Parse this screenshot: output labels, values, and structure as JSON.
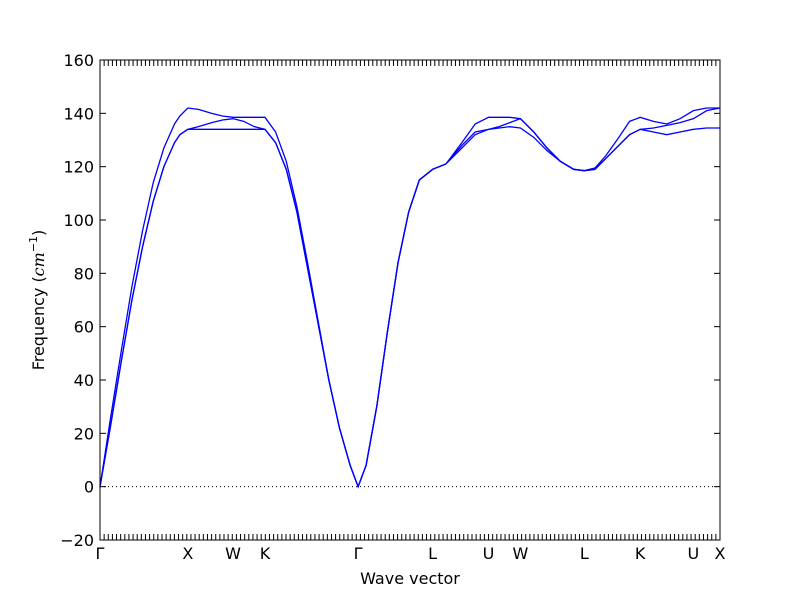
{
  "chart_data": {
    "type": "line",
    "title": "",
    "xlabel": "Wave vector",
    "ylabel_prefix": "Frequency (",
    "ylabel_unit_base": "cm",
    "ylabel_unit_exp": "−1",
    "ylabel_suffix": ")",
    "ylim": [
      -20,
      160
    ],
    "yticks": [
      -20,
      0,
      20,
      40,
      60,
      80,
      100,
      120,
      140,
      160
    ],
    "ytick_labels": [
      "−20",
      "0",
      "20",
      "40",
      "60",
      "80",
      "100",
      "120",
      "140",
      "160"
    ],
    "xlim": [
      0,
      23.3
    ],
    "high_symmetry_points": [
      {
        "label": "Γ",
        "x": 0
      },
      {
        "label": "X",
        "x": 3.3
      },
      {
        "label": "W",
        "x": 5.0
      },
      {
        "label": "K",
        "x": 6.2
      },
      {
        "label": "Γ",
        "x": 9.7
      },
      {
        "label": "L",
        "x": 12.5
      },
      {
        "label": "U",
        "x": 14.6
      },
      {
        "label": "W",
        "x": 15.8
      },
      {
        "label": "L",
        "x": 18.2
      },
      {
        "label": "K",
        "x": 20.3
      },
      {
        "label": "U",
        "x": 22.3
      },
      {
        "label": "X",
        "x": 23.3
      }
    ],
    "zero_line": true,
    "grid": false,
    "series_color": "#0000ff",
    "series": [
      {
        "x": [
          0,
          0.4,
          0.8,
          1.2,
          1.6,
          2.0,
          2.4,
          2.8,
          3.0,
          3.3,
          3.7,
          4.2,
          4.6,
          5.0,
          5.4,
          5.8,
          6.2,
          6.6,
          7.0,
          7.4,
          7.8,
          8.2,
          8.6,
          9.0,
          9.4,
          9.7,
          10.0,
          10.4,
          10.8,
          11.2,
          11.6,
          12.0,
          12.5,
          13.0,
          13.6,
          14.1,
          14.6,
          15.0,
          15.4,
          15.8,
          16.3,
          16.8,
          17.3,
          17.8,
          18.2,
          18.6,
          19.0,
          19.5,
          19.9,
          20.3,
          20.8,
          21.3,
          21.8,
          22.3,
          22.8,
          23.3
        ],
        "y": [
          0,
          26,
          51,
          75,
          96,
          114,
          127,
          136,
          139,
          142,
          141.5,
          140,
          139,
          138.5,
          138.5,
          138.5,
          138.5,
          133,
          122,
          105,
          84,
          62,
          40,
          22,
          8,
          0,
          8,
          30,
          58,
          84,
          103,
          115,
          119,
          121,
          129,
          136,
          138.5,
          138.5,
          138.5,
          138,
          133,
          127,
          122,
          119,
          118.5,
          119.5,
          124,
          131,
          137,
          138.5,
          137,
          136,
          138,
          141,
          142,
          142
        ]
      },
      {
        "x": [
          0,
          0.4,
          0.8,
          1.2,
          1.6,
          2.0,
          2.4,
          2.8,
          3.0,
          3.3,
          3.7,
          4.2,
          4.6,
          5.0,
          5.4,
          5.8,
          6.2,
          6.6,
          7.0,
          7.4,
          7.8,
          8.2,
          8.6,
          9.0,
          9.4,
          9.7,
          10.0,
          10.4,
          10.8,
          11.2,
          11.6,
          12.0,
          12.5,
          13.0,
          13.6,
          14.1,
          14.6,
          15.0,
          15.4,
          15.8,
          16.3,
          16.8,
          17.3,
          17.8,
          18.2,
          18.6,
          19.0,
          19.5,
          19.9,
          20.3,
          20.8,
          21.3,
          21.8,
          22.3,
          22.8,
          23.3
        ],
        "y": [
          0,
          23,
          47,
          70,
          90,
          107,
          120,
          129,
          132,
          134,
          135,
          136.5,
          137.5,
          138,
          137,
          135,
          134,
          129,
          119,
          103,
          82,
          61,
          40,
          22,
          8,
          0,
          8,
          30,
          58,
          84,
          103,
          115,
          119,
          121,
          128,
          133,
          134,
          135,
          136.5,
          138,
          133,
          127,
          122,
          119,
          118.5,
          119,
          123,
          128,
          132,
          134,
          134.5,
          135.5,
          136.5,
          138,
          141,
          142
        ]
      },
      {
        "x": [
          0,
          0.4,
          0.8,
          1.2,
          1.6,
          2.0,
          2.4,
          2.8,
          3.0,
          3.3,
          3.7,
          4.2,
          4.6,
          5.0,
          5.4,
          5.8,
          6.2,
          6.6,
          7.0,
          7.4,
          7.8,
          8.2,
          8.6,
          9.0,
          9.4,
          9.7,
          10.0,
          10.4,
          10.8,
          11.2,
          11.6,
          12.0,
          12.5,
          13.0,
          13.6,
          14.1,
          14.6,
          15.0,
          15.4,
          15.8,
          16.3,
          16.8,
          17.3,
          17.8,
          18.2,
          18.6,
          19.0,
          19.5,
          19.9,
          20.3,
          20.8,
          21.3,
          21.8,
          22.3,
          22.8,
          23.3
        ],
        "y": [
          0,
          23,
          47,
          70,
          90,
          107,
          120,
          129,
          132,
          134,
          134,
          134,
          134,
          134,
          134,
          134,
          134,
          129,
          119,
          103,
          82,
          61,
          40,
          22,
          8,
          0,
          8,
          30,
          58,
          84,
          103,
          115,
          119,
          121,
          127,
          132,
          134,
          134.5,
          135,
          134.5,
          131,
          126,
          122,
          119,
          118.5,
          119,
          123,
          128,
          132,
          134,
          133,
          132,
          133,
          134,
          134.5,
          134.5
        ]
      }
    ]
  }
}
